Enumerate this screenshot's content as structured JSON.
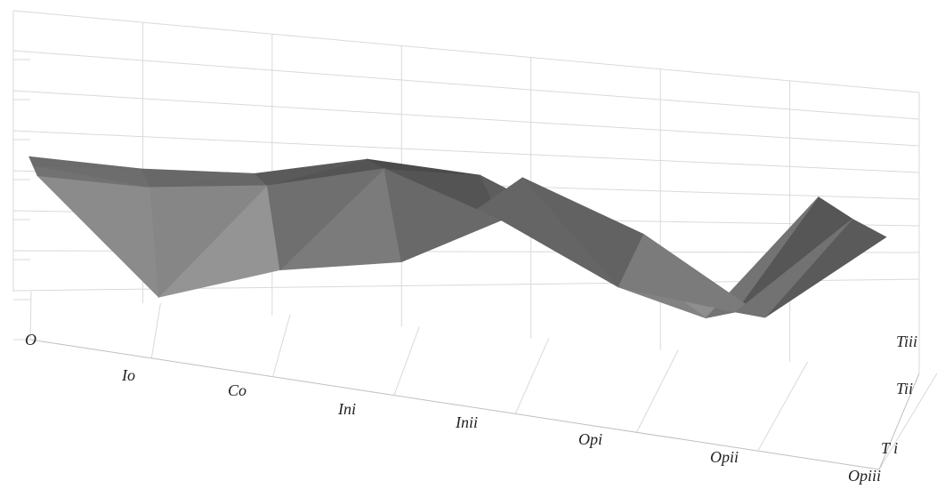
{
  "chart_data": {
    "type": "surface",
    "title": "",
    "x_categories": [
      "O",
      "Io",
      "Co",
      "Ini",
      "Inii",
      "Opi",
      "Opii",
      "Opiii"
    ],
    "depth_categories": [
      "T i",
      "Tii",
      "Tiii"
    ],
    "series": [
      {
        "depth": "T i",
        "values": [
          4.3,
          1.6,
          2.8,
          3.5,
          6.2,
          5.2,
          3.5,
          6.1
        ]
      },
      {
        "depth": "Tii",
        "values": [
          4.5,
          4.4,
          4.9,
          5.8,
          4.9,
          3.6,
          3.4,
          6.3
        ]
      },
      {
        "depth": "Tiii",
        "values": [
          4.7,
          4.8,
          5.1,
          5.9,
          5.9,
          4.8,
          3.0,
          6.6
        ]
      }
    ],
    "value_axis": {
      "labels_shown": false,
      "range": [
        0,
        7
      ],
      "gridlines": 7
    },
    "legend": "none",
    "grid": true,
    "colors": {
      "low": "#e6e6e6",
      "high": "#2e2e2e",
      "gridline": "#d9d9d9"
    }
  }
}
